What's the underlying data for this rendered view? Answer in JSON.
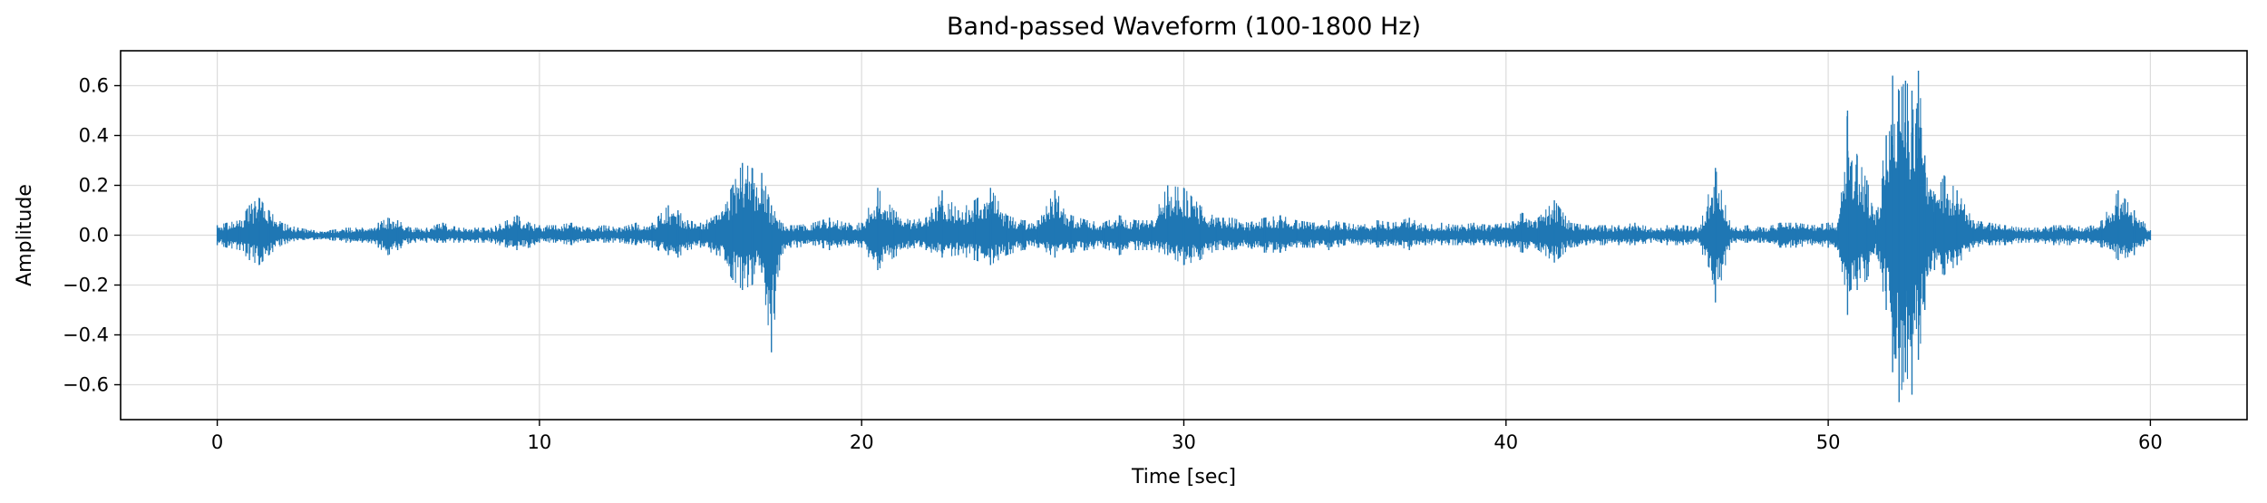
{
  "chart_data": {
    "type": "line",
    "title": "Band-passed Waveform (100-1800 Hz)",
    "xlabel": "Time [sec]",
    "ylabel": "Amplitude",
    "xlim": [
      -3,
      63
    ],
    "ylim": [
      -0.74,
      0.74
    ],
    "xticks": [
      0,
      10,
      20,
      30,
      40,
      50,
      60
    ],
    "xtick_labels": [
      "0",
      "10",
      "20",
      "30",
      "40",
      "50",
      "60"
    ],
    "yticks": [
      -0.6,
      -0.4,
      -0.2,
      0.0,
      0.2,
      0.4,
      0.6
    ],
    "ytick_labels": [
      "−0.6",
      "−0.4",
      "−0.2",
      "0.0",
      "0.2",
      "0.4",
      "0.6"
    ],
    "grid": true,
    "legend": false,
    "color": "#1f77b4",
    "series": [
      {
        "description": "waveform envelope, sampled peaks",
        "t": [
          0.0,
          0.3,
          0.7,
          1.0,
          1.3,
          1.6,
          2.0,
          2.5,
          3.0,
          3.5,
          4.0,
          4.5,
          5.0,
          5.3,
          5.6,
          6.0,
          6.5,
          7.0,
          7.5,
          8.0,
          8.5,
          9.0,
          9.3,
          9.7,
          10.0,
          10.5,
          11.0,
          11.5,
          12.0,
          12.5,
          13.0,
          13.5,
          14.0,
          14.3,
          14.6,
          15.0,
          15.5,
          16.0,
          16.3,
          16.6,
          16.9,
          17.2,
          17.5,
          17.8,
          18.0,
          18.5,
          19.0,
          19.5,
          20.0,
          20.5,
          21.0,
          21.5,
          22.0,
          22.5,
          23.0,
          23.5,
          24.0,
          24.5,
          25.0,
          25.5,
          26.0,
          26.5,
          27.0,
          27.5,
          28.0,
          28.5,
          29.0,
          29.5,
          30.0,
          30.5,
          31.0,
          31.5,
          32.0,
          32.5,
          33.0,
          33.5,
          34.0,
          34.5,
          35.0,
          35.5,
          36.0,
          36.5,
          37.0,
          37.5,
          38.0,
          38.5,
          39.0,
          39.5,
          40.0,
          40.5,
          41.0,
          41.5,
          42.0,
          42.5,
          43.0,
          43.5,
          44.0,
          44.5,
          45.0,
          45.5,
          46.0,
          46.5,
          47.0,
          47.5,
          48.0,
          48.5,
          49.0,
          49.5,
          50.0,
          50.3,
          50.6,
          50.9,
          51.2,
          51.5,
          51.8,
          52.0,
          52.2,
          52.4,
          52.6,
          52.8,
          53.0,
          53.3,
          53.6,
          54.0,
          54.5,
          55.0,
          55.5,
          56.0,
          56.5,
          57.0,
          57.5,
          58.0,
          58.5,
          59.0,
          59.5,
          60.0
        ],
        "upper": [
          0.04,
          0.05,
          0.06,
          0.12,
          0.15,
          0.1,
          0.05,
          0.03,
          0.02,
          0.02,
          0.03,
          0.03,
          0.05,
          0.07,
          0.06,
          0.03,
          0.03,
          0.05,
          0.03,
          0.03,
          0.03,
          0.06,
          0.08,
          0.05,
          0.04,
          0.04,
          0.05,
          0.03,
          0.04,
          0.03,
          0.05,
          0.05,
          0.12,
          0.1,
          0.06,
          0.05,
          0.08,
          0.2,
          0.29,
          0.27,
          0.25,
          0.12,
          0.05,
          0.04,
          0.04,
          0.05,
          0.07,
          0.05,
          0.05,
          0.19,
          0.1,
          0.06,
          0.07,
          0.18,
          0.1,
          0.14,
          0.19,
          0.08,
          0.06,
          0.06,
          0.18,
          0.08,
          0.06,
          0.05,
          0.08,
          0.06,
          0.06,
          0.2,
          0.19,
          0.12,
          0.07,
          0.07,
          0.05,
          0.07,
          0.08,
          0.06,
          0.05,
          0.06,
          0.05,
          0.04,
          0.06,
          0.05,
          0.07,
          0.04,
          0.05,
          0.04,
          0.05,
          0.04,
          0.05,
          0.09,
          0.07,
          0.14,
          0.05,
          0.04,
          0.04,
          0.04,
          0.05,
          0.03,
          0.04,
          0.04,
          0.03,
          0.27,
          0.03,
          0.04,
          0.03,
          0.05,
          0.05,
          0.04,
          0.05,
          0.05,
          0.5,
          0.32,
          0.22,
          0.1,
          0.4,
          0.64,
          0.58,
          0.62,
          0.58,
          0.66,
          0.32,
          0.16,
          0.24,
          0.18,
          0.06,
          0.05,
          0.04,
          0.03,
          0.03,
          0.04,
          0.04,
          0.03,
          0.06,
          0.18,
          0.1,
          0.02
        ],
        "lower": [
          -0.04,
          -0.05,
          -0.06,
          -0.1,
          -0.12,
          -0.08,
          -0.04,
          -0.02,
          -0.02,
          -0.02,
          -0.03,
          -0.03,
          -0.05,
          -0.08,
          -0.06,
          -0.03,
          -0.03,
          -0.03,
          -0.03,
          -0.03,
          -0.03,
          -0.05,
          -0.06,
          -0.05,
          -0.03,
          -0.03,
          -0.04,
          -0.03,
          -0.03,
          -0.03,
          -0.04,
          -0.05,
          -0.08,
          -0.09,
          -0.06,
          -0.05,
          -0.08,
          -0.18,
          -0.22,
          -0.2,
          -0.15,
          -0.47,
          -0.08,
          -0.05,
          -0.05,
          -0.04,
          -0.06,
          -0.04,
          -0.05,
          -0.14,
          -0.09,
          -0.05,
          -0.06,
          -0.09,
          -0.08,
          -0.1,
          -0.12,
          -0.08,
          -0.06,
          -0.05,
          -0.09,
          -0.07,
          -0.06,
          -0.05,
          -0.08,
          -0.06,
          -0.06,
          -0.08,
          -0.12,
          -0.1,
          -0.06,
          -0.06,
          -0.05,
          -0.07,
          -0.07,
          -0.05,
          -0.05,
          -0.06,
          -0.04,
          -0.04,
          -0.05,
          -0.04,
          -0.06,
          -0.04,
          -0.04,
          -0.04,
          -0.04,
          -0.04,
          -0.05,
          -0.07,
          -0.06,
          -0.11,
          -0.05,
          -0.04,
          -0.04,
          -0.04,
          -0.04,
          -0.03,
          -0.04,
          -0.04,
          -0.03,
          -0.27,
          -0.03,
          -0.03,
          -0.03,
          -0.05,
          -0.05,
          -0.04,
          -0.05,
          -0.06,
          -0.32,
          -0.22,
          -0.18,
          -0.08,
          -0.3,
          -0.55,
          -0.67,
          -0.55,
          -0.64,
          -0.5,
          -0.3,
          -0.14,
          -0.16,
          -0.12,
          -0.05,
          -0.04,
          -0.04,
          -0.03,
          -0.03,
          -0.04,
          -0.04,
          -0.03,
          -0.05,
          -0.1,
          -0.08,
          -0.02
        ]
      }
    ]
  }
}
